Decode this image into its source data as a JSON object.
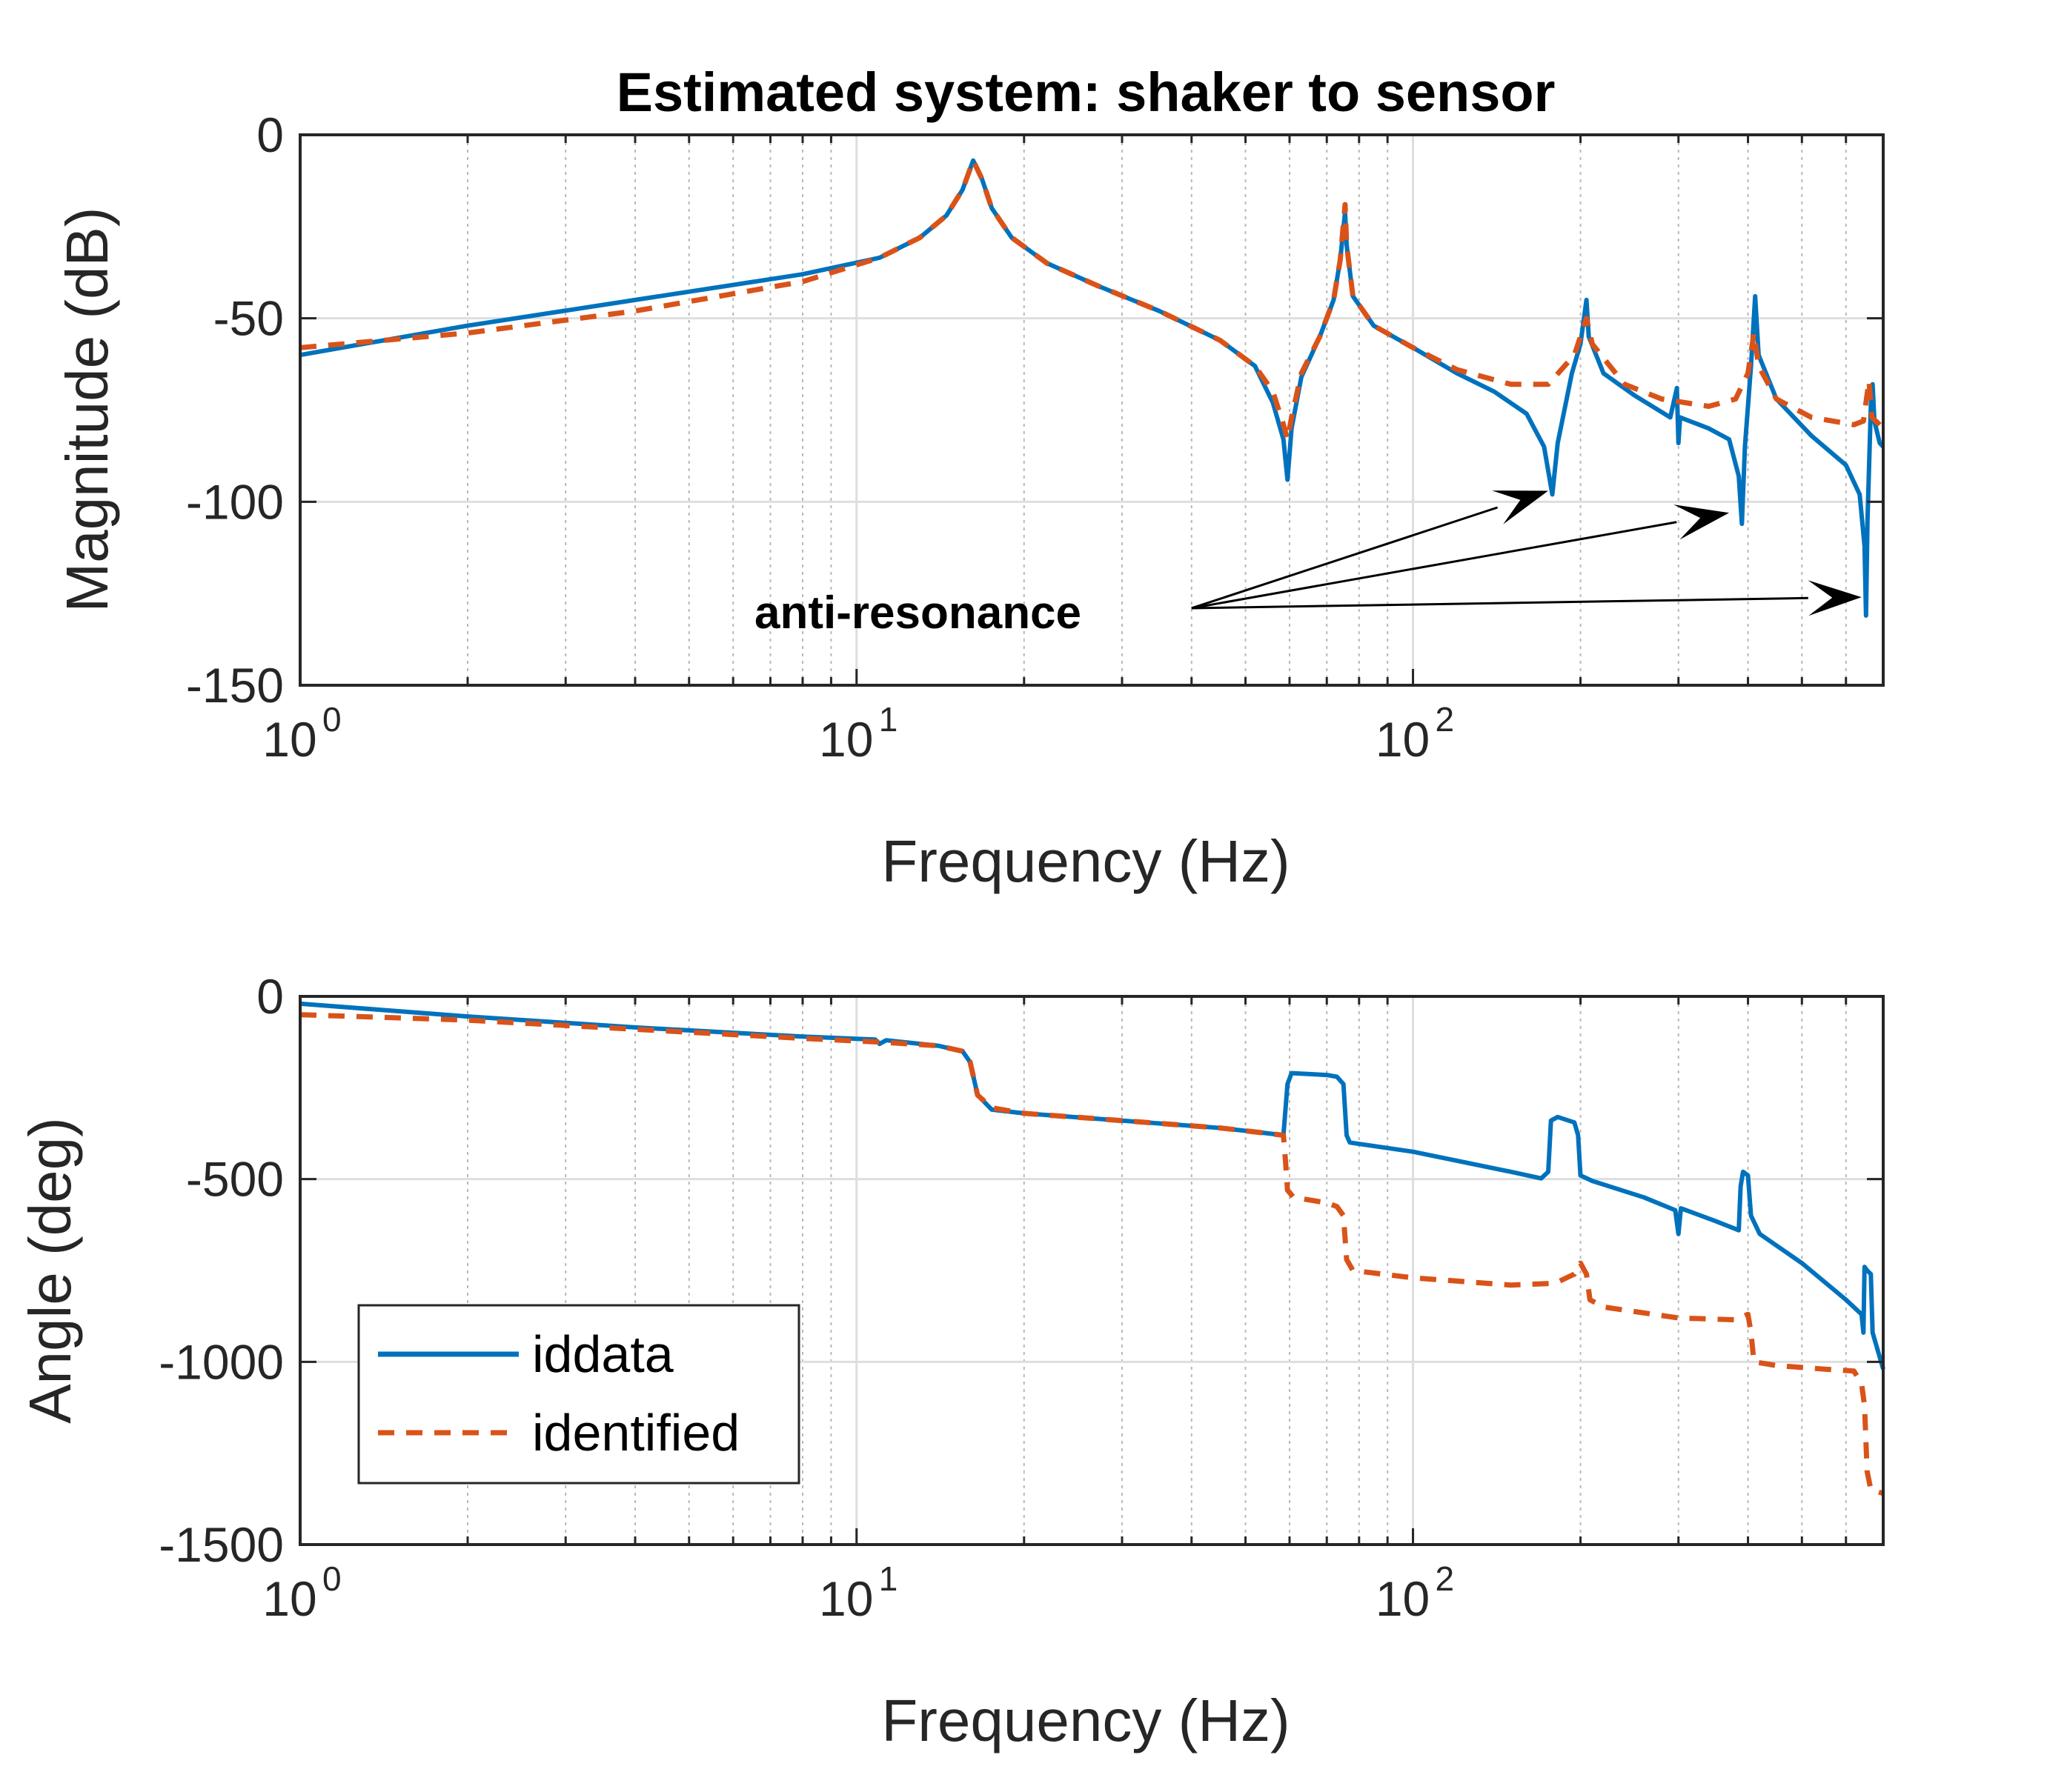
{
  "chart_data": [
    {
      "type": "line",
      "id": "magnitude",
      "title": "Estimated system: shaker to sensor",
      "xlabel": "Frequency (Hz)",
      "ylabel": "Magnitude (dB)",
      "xscale": "log",
      "xlim": [
        1,
        700
      ],
      "ylim": [
        -150,
        0
      ],
      "yticks": [
        0,
        -50,
        -100,
        -150
      ],
      "ytick_labels": [
        "0",
        "-50",
        "-100",
        "-150"
      ],
      "xticks": [
        1,
        10,
        100
      ],
      "xtick_labels": [
        {
          "base": "10",
          "exp": "0"
        },
        {
          "base": "10",
          "exp": "1"
        },
        {
          "base": "10",
          "exp": "2"
        }
      ],
      "grid": true,
      "series": [
        {
          "name": "iddata",
          "color": "#0072BD",
          "dash": "solid",
          "points": [
            [
              1,
              -60
            ],
            [
              2,
              -52
            ],
            [
              4,
              -45
            ],
            [
              8,
              -38
            ],
            [
              11,
              -33.5
            ],
            [
              13,
              -28
            ],
            [
              14.5,
              -22
            ],
            [
              15.5,
              -15
            ],
            [
              16.2,
              -7
            ],
            [
              16.8,
              -12
            ],
            [
              17.5,
              -20
            ],
            [
              19,
              -28
            ],
            [
              22,
              -35
            ],
            [
              27,
              -41
            ],
            [
              35,
              -48
            ],
            [
              45,
              -56
            ],
            [
              52,
              -63
            ],
            [
              56,
              -73
            ],
            [
              58.5,
              -83
            ],
            [
              59.5,
              -94
            ],
            [
              60.5,
              -80
            ],
            [
              63,
              -66
            ],
            [
              68,
              -55
            ],
            [
              72,
              -45
            ],
            [
              74,
              -34
            ],
            [
              75.5,
              -21
            ],
            [
              76,
              -30
            ],
            [
              78,
              -44
            ],
            [
              85,
              -52
            ],
            [
              100,
              -58
            ],
            [
              120,
              -65
            ],
            [
              140,
              -70
            ],
            [
              160,
              -76
            ],
            [
              172,
              -85
            ],
            [
              178,
              -98
            ],
            [
              182,
              -84
            ],
            [
              193,
              -65
            ],
            [
              200,
              -57
            ],
            [
              205,
              -45
            ],
            [
              207,
              -55
            ],
            [
              220,
              -65
            ],
            [
              250,
              -71
            ],
            [
              290,
              -77
            ],
            [
              298,
              -69
            ],
            [
              300,
              -84
            ],
            [
              302,
              -77
            ],
            [
              340,
              -80
            ],
            [
              370,
              -83
            ],
            [
              385,
              -93
            ],
            [
              390,
              -106
            ],
            [
              395,
              -85
            ],
            [
              405,
              -63
            ],
            [
              412,
              -44
            ],
            [
              418,
              -60
            ],
            [
              450,
              -72
            ],
            [
              520,
              -82
            ],
            [
              600,
              -90
            ],
            [
              635,
              -98
            ],
            [
              648,
              -112
            ],
            [
              652,
              -131
            ],
            [
              656,
              -105
            ],
            [
              665,
              -74
            ],
            [
              670,
              -68
            ],
            [
              675,
              -78
            ],
            [
              690,
              -84
            ],
            [
              700,
              -85
            ]
          ]
        },
        {
          "name": "identified",
          "color": "#D95319",
          "dash": "dashed",
          "points": [
            [
              1,
              -58
            ],
            [
              2,
              -54
            ],
            [
              4,
              -48
            ],
            [
              8,
              -40
            ],
            [
              11,
              -33.5
            ],
            [
              13,
              -28
            ],
            [
              14.5,
              -22
            ],
            [
              15.5,
              -15
            ],
            [
              16.2,
              -7
            ],
            [
              16.8,
              -12
            ],
            [
              17.5,
              -20
            ],
            [
              19,
              -28
            ],
            [
              22,
              -35
            ],
            [
              27,
              -41
            ],
            [
              35,
              -48
            ],
            [
              45,
              -56
            ],
            [
              52,
              -63
            ],
            [
              56,
              -70
            ],
            [
              58.5,
              -79
            ],
            [
              59.5,
              -83
            ],
            [
              60.5,
              -77
            ],
            [
              63,
              -65
            ],
            [
              68,
              -55
            ],
            [
              72,
              -45
            ],
            [
              74,
              -34
            ],
            [
              75.5,
              -19
            ],
            [
              76,
              -30
            ],
            [
              78,
              -44
            ],
            [
              85,
              -52
            ],
            [
              100,
              -58
            ],
            [
              120,
              -64
            ],
            [
              150,
              -68
            ],
            [
              175,
              -68
            ],
            [
              195,
              -60
            ],
            [
              205,
              -50
            ],
            [
              210,
              -57
            ],
            [
              240,
              -68
            ],
            [
              280,
              -72
            ],
            [
              340,
              -74
            ],
            [
              380,
              -72
            ],
            [
              400,
              -65
            ],
            [
              410,
              -54
            ],
            [
              418,
              -63
            ],
            [
              450,
              -72
            ],
            [
              520,
              -77
            ],
            [
              620,
              -79
            ],
            [
              645,
              -78
            ],
            [
              660,
              -67
            ],
            [
              668,
              -77
            ],
            [
              690,
              -79
            ],
            [
              700,
              -80
            ]
          ]
        }
      ],
      "annotation": {
        "text": "anti-resonance",
        "from": [
          40,
          -129
        ],
        "targets": [
          [
            175,
            -97
          ],
          [
            370,
            -103
          ],
          [
            640,
            -126
          ]
        ]
      }
    },
    {
      "type": "line",
      "id": "phase",
      "title": "",
      "xlabel": "Frequency (Hz)",
      "ylabel": "Angle (deg)",
      "xscale": "log",
      "xlim": [
        1,
        700
      ],
      "ylim": [
        -1500,
        0
      ],
      "yticks": [
        0,
        -500,
        -1000,
        -1500
      ],
      "ytick_labels": [
        "0",
        "-500",
        "-1000",
        "-1500"
      ],
      "xticks": [
        1,
        10,
        100
      ],
      "xtick_labels": [
        {
          "base": "10",
          "exp": "0"
        },
        {
          "base": "10",
          "exp": "1"
        },
        {
          "base": "10",
          "exp": "2"
        }
      ],
      "grid": true,
      "legend": {
        "position": "bottom-left",
        "entries": [
          "iddata",
          "identified"
        ]
      },
      "series": [
        {
          "name": "iddata",
          "color": "#0072BD",
          "dash": "solid",
          "points": [
            [
              1,
              -20
            ],
            [
              2,
              -55
            ],
            [
              4,
              -85
            ],
            [
              8,
              -110
            ],
            [
              10.8,
              -118
            ],
            [
              11,
              -130
            ],
            [
              11.3,
              -120
            ],
            [
              14,
              -135
            ],
            [
              15.5,
              -150
            ],
            [
              16,
              -180
            ],
            [
              16.5,
              -270
            ],
            [
              17.5,
              -310
            ],
            [
              20,
              -320
            ],
            [
              30,
              -340
            ],
            [
              45,
              -360
            ],
            [
              55,
              -375
            ],
            [
              58.5,
              -380
            ],
            [
              59.5,
              -240
            ],
            [
              60.5,
              -210
            ],
            [
              70,
              -215
            ],
            [
              73,
              -220
            ],
            [
              75,
              -240
            ],
            [
              76,
              -380
            ],
            [
              77,
              -400
            ],
            [
              100,
              -425
            ],
            [
              150,
              -480
            ],
            [
              170,
              -498
            ],
            [
              175,
              -480
            ],
            [
              177,
              -340
            ],
            [
              182,
              -330
            ],
            [
              195,
              -345
            ],
            [
              198,
              -380
            ],
            [
              200,
              -490
            ],
            [
              210,
              -505
            ],
            [
              260,
              -550
            ],
            [
              296,
              -585
            ],
            [
              300,
              -650
            ],
            [
              303,
              -580
            ],
            [
              350,
              -615
            ],
            [
              385,
              -640
            ],
            [
              388,
              -520
            ],
            [
              392,
              -480
            ],
            [
              400,
              -490
            ],
            [
              405,
              -600
            ],
            [
              420,
              -650
            ],
            [
              500,
              -730
            ],
            [
              600,
              -830
            ],
            [
              640,
              -870
            ],
            [
              645,
              -920
            ],
            [
              648,
              -740
            ],
            [
              655,
              -750
            ],
            [
              665,
              -760
            ],
            [
              670,
              -920
            ],
            [
              700,
              -1020
            ]
          ]
        },
        {
          "name": "identified",
          "color": "#D95319",
          "dash": "dashed",
          "points": [
            [
              1,
              -50
            ],
            [
              2,
              -65
            ],
            [
              4,
              -90
            ],
            [
              8,
              -115
            ],
            [
              11,
              -125
            ],
            [
              14,
              -135
            ],
            [
              15.5,
              -150
            ],
            [
              16,
              -180
            ],
            [
              16.5,
              -270
            ],
            [
              17.5,
              -305
            ],
            [
              20,
              -320
            ],
            [
              30,
              -340
            ],
            [
              45,
              -360
            ],
            [
              55,
              -375
            ],
            [
              58.5,
              -380
            ],
            [
              59,
              -450
            ],
            [
              59.5,
              -530
            ],
            [
              61,
              -550
            ],
            [
              70,
              -565
            ],
            [
              73,
              -575
            ],
            [
              75,
              -600
            ],
            [
              76,
              -720
            ],
            [
              78,
              -750
            ],
            [
              100,
              -770
            ],
            [
              150,
              -790
            ],
            [
              180,
              -785
            ],
            [
              195,
              -760
            ],
            [
              200,
              -730
            ],
            [
              205,
              -760
            ],
            [
              208,
              -830
            ],
            [
              220,
              -850
            ],
            [
              300,
              -880
            ],
            [
              380,
              -885
            ],
            [
              400,
              -870
            ],
            [
              405,
              -920
            ],
            [
              410,
              -1000
            ],
            [
              450,
              -1010
            ],
            [
              550,
              -1020
            ],
            [
              620,
              -1025
            ],
            [
              640,
              -1060
            ],
            [
              648,
              -1120
            ],
            [
              655,
              -1300
            ],
            [
              665,
              -1350
            ],
            [
              700,
              -1360
            ]
          ]
        }
      ]
    }
  ]
}
